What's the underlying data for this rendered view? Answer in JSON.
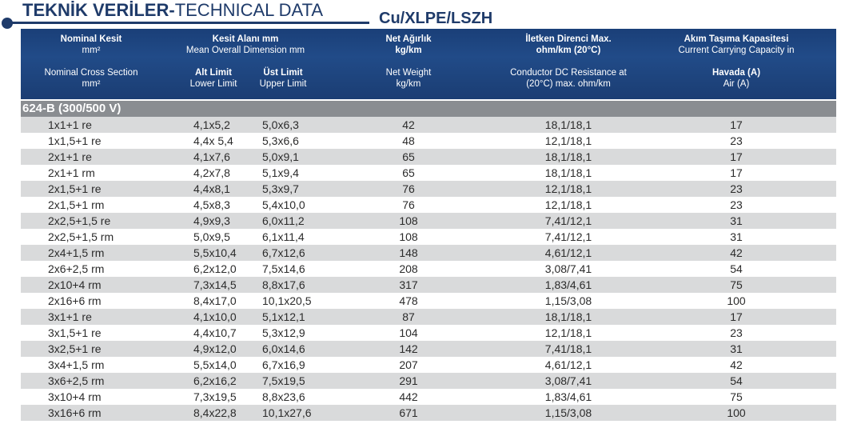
{
  "title": {
    "bold": "TEKNİK VERİLER-",
    "regular": "TECHNICAL DATA"
  },
  "subtitle": "Cu/XLPE/LSZH",
  "headers": {
    "col1_tr": "Nominal Kesit",
    "col1_tr_unit": "mm²",
    "col1_en": "Nominal Cross Section",
    "col1_en_unit": "mm²",
    "col2_tr": "Kesit Alanı mm",
    "col2_en": "Mean Overall Dimension mm",
    "col2a_tr": "Alt Limit",
    "col2a_en": "Lower Limit",
    "col2b_tr": "Üst Limit",
    "col2b_en": "Upper Limit",
    "col3_tr": "Net Ağırlık",
    "col3_tr_unit": "kg/km",
    "col3_en": "Net Weight",
    "col3_en_unit": "kg/km",
    "col4_tr": "İletken Direnci Max.",
    "col4_tr_unit": "ohm/km (20°C)",
    "col4_en": "Conductor DC Resistance at",
    "col4_en2": "(20°C) max. ohm/km",
    "col5_tr": "Akım Taşıma Kapasitesi",
    "col5_en": "Current Carrying Capacity in",
    "col5_sub_tr": "Havada (A)",
    "col5_sub_en": "Air (A)"
  },
  "section": "624-B (300/500 V)",
  "rows": [
    [
      "1x1+1 re",
      "4,1x5,2",
      "5,0x6,3",
      "42",
      "18,1/18,1",
      "17"
    ],
    [
      "1x1,5+1 re",
      "4,4x 5,4",
      "5,3x6,6",
      "48",
      "12,1/18,1",
      "23"
    ],
    [
      "2x1+1 re",
      "4,1x7,6",
      "5,0x9,1",
      "65",
      "18,1/18,1",
      "17"
    ],
    [
      "2x1+1 rm",
      "4,2x7,8",
      "5,1x9,4",
      "65",
      "18,1/18,1",
      "17"
    ],
    [
      "2x1,5+1 re",
      "4,4x8,1",
      "5,3x9,7",
      "76",
      "12,1/18,1",
      "23"
    ],
    [
      "2x1,5+1 rm",
      "4,5x8,3",
      "5,4x10,0",
      "76",
      "12,1/18,1",
      "23"
    ],
    [
      "2x2,5+1,5 re",
      "4,9x9,3",
      "6,0x11,2",
      "108",
      "7,41/12,1",
      "31"
    ],
    [
      "2x2,5+1,5 rm",
      "5,0x9,5",
      "6,1x11,4",
      "108",
      "7,41/12,1",
      "31"
    ],
    [
      "2x4+1,5 rm",
      "5,5x10,4",
      "6,7x12,6",
      "148",
      "4,61/12,1",
      "42"
    ],
    [
      "2x6+2,5 rm",
      "6,2x12,0",
      "7,5x14,6",
      "208",
      "3,08/7,41",
      "54"
    ],
    [
      "2x10+4 rm",
      "7,3x14,5",
      "8,8x17,6",
      "317",
      "1,83/4,61",
      "75"
    ],
    [
      "2x16+6 rm",
      "8,4x17,0",
      "10,1x20,5",
      "478",
      "1,15/3,08",
      "100"
    ],
    [
      "3x1+1 re",
      "4,1x10,0",
      "5,1x12,1",
      "87",
      "18,1/18,1",
      "17"
    ],
    [
      "3x1,5+1 re",
      "4,4x10,7",
      "5,3x12,9",
      "104",
      "12,1/18,1",
      "23"
    ],
    [
      "3x2,5+1 re",
      "4,9x12,0",
      "6,0x14,6",
      "142",
      "7,41/18,1",
      "31"
    ],
    [
      "3x4+1,5 rm",
      "5,5x14,0",
      "6,7x16,9",
      "207",
      "4,61/12,1",
      "42"
    ],
    [
      "3x6+2,5 rm",
      "6,2x16,2",
      "7,5x19,5",
      "291",
      "3,08/7,41",
      "54"
    ],
    [
      "3x10+4 rm",
      "7,3x19,5",
      "8,8x23,6",
      "442",
      "1,83/4,61",
      "75"
    ],
    [
      "3x16+6 rm",
      "8,4x22,8",
      "10,1x27,6",
      "671",
      "1,15/3,08",
      "100"
    ]
  ],
  "colors": {
    "header_bg": "#1f4580",
    "section_bg": "#8a8d91",
    "shade": "#d9dadb",
    "title": "#1f3b6a"
  }
}
